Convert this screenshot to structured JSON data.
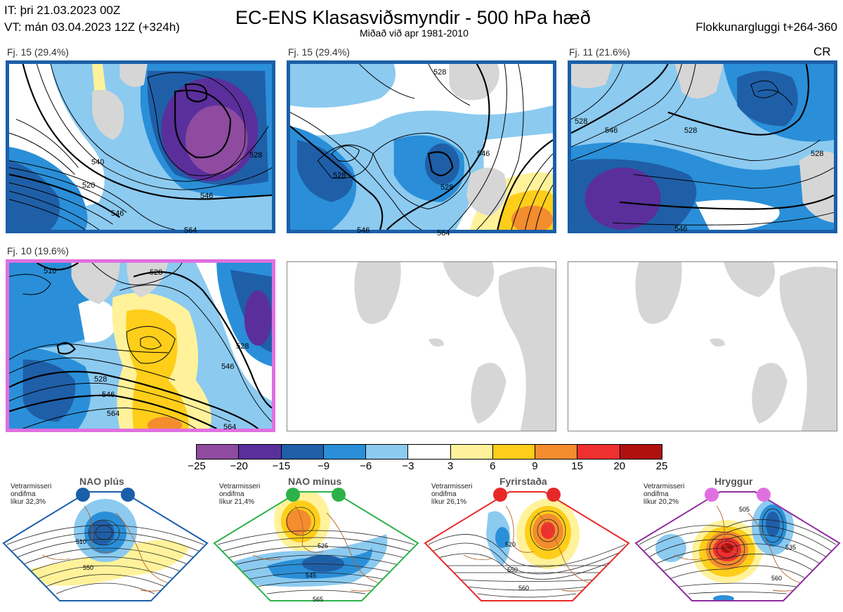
{
  "header": {
    "it_line": "IT: þri 21.03.2023 00Z",
    "vt_line": "VT: mán 03.04.2023 12Z  (+324h)",
    "title": "EC-ENS Klasasviðsmyndir - 500 hPa hæð",
    "subtitle": "Miðað við apr 1981-2010",
    "window": "Flokkunargluggi t+264-360",
    "regime_code": "CR"
  },
  "panels": [
    {
      "label": "Fj. 15 (29.4%)",
      "regime": "NAO plús",
      "frame_color": "#1a5fa8",
      "contour_labels": [
        "540",
        "520",
        "546",
        "528",
        "546",
        "564"
      ]
    },
    {
      "label": "Fj. 15 (29.4%)",
      "regime": "NAO plús",
      "frame_color": "#1a5fa8",
      "contour_labels": [
        "528",
        "528",
        "546",
        "528",
        "546",
        "564"
      ]
    },
    {
      "label": "Fj. 11 (21.6%)",
      "regime": "NAO plús",
      "frame_color": "#1a5fa8",
      "contour_labels": [
        "528",
        "546",
        "528",
        "528",
        "546"
      ]
    },
    {
      "label": "Fj. 10 (19.6%)",
      "regime": "Hryggur",
      "frame_color": "#e070e0",
      "contour_labels": [
        "510",
        "528",
        "528",
        "528",
        "546",
        "546",
        "564",
        "564"
      ]
    },
    {
      "label": "",
      "regime": "",
      "frame_color": "",
      "contour_labels": []
    },
    {
      "label": "",
      "regime": "",
      "frame_color": "",
      "contour_labels": []
    }
  ],
  "colorbar": {
    "ticks": [
      "−25",
      "−20",
      "−15",
      "−9",
      "−6",
      "−3",
      "3",
      "6",
      "9",
      "15",
      "20",
      "25"
    ],
    "colors": [
      "#8e4ba0",
      "#5a2f9c",
      "#1f5fa8",
      "#2a8fd8",
      "#8ccaf0",
      "#ffffff",
      "#fff29a",
      "#ffce1a",
      "#f38d2e",
      "#ee3030",
      "#b01010"
    ]
  },
  "regimes": [
    {
      "name": "NAO plús",
      "stat_label": "Vetrarmisseri\nondifma\nlíkur 32,3%",
      "color": "#1a5fa8",
      "contour_labels": [
        "510",
        "550"
      ]
    },
    {
      "name": "NAO mínus",
      "stat_label": "Vetrarmisseri\nondifma\nlíkur 21,4%",
      "color": "#2db24a",
      "contour_labels": [
        "525",
        "545",
        "565"
      ]
    },
    {
      "name": "Fyrirstaða",
      "stat_label": "Vetrarmisseri\nondifma\nlíkur 26,1%",
      "color": "#e82828",
      "contour_labels": [
        "520",
        "550",
        "560"
      ]
    },
    {
      "name": "Hryggur",
      "stat_label": "Vetrarmisseri\nondifma\nlíkur 20,2%",
      "color": "#8e2d9e",
      "contour_labels": [
        "505",
        "535",
        "560"
      ]
    }
  ]
}
